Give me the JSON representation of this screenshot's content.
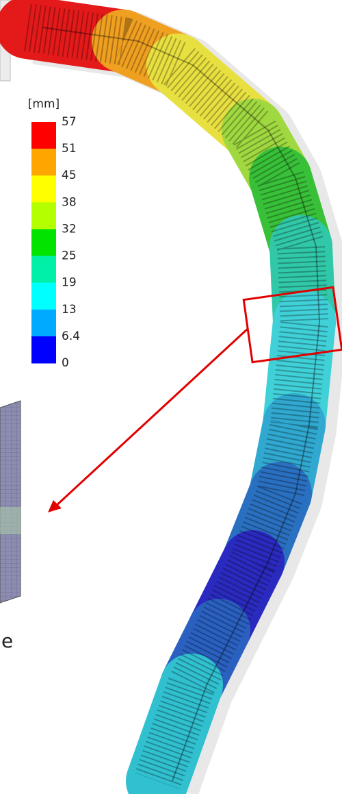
{
  "legend": {
    "unit": "[mm]",
    "labels": [
      57,
      51,
      45,
      38,
      32,
      25,
      19,
      13,
      6.4,
      0
    ],
    "colors": [
      "#ff0000",
      "#ffa500",
      "#ffff00",
      "#b4ff00",
      "#00e400",
      "#00f0a8",
      "#00ffff",
      "#00aaff",
      "#0000ff"
    ]
  },
  "caption_fragment": "e"
}
